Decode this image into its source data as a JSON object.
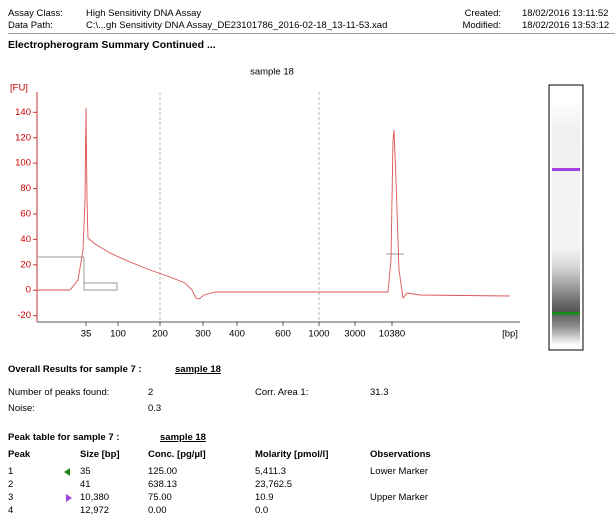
{
  "header": {
    "assay_class_label": "Assay Class:",
    "assay_class": "High Sensitivity DNA Assay",
    "data_path_label": "Data Path:",
    "data_path": "C:\\...gh Sensitivity DNA Assay_DE23101786_2016-02-18_13-11-53.xad",
    "created_label": "Created:",
    "created": "18/02/2016 13:11:52",
    "modified_label": "Modified:",
    "modified": "18/02/2016 13:53:12",
    "section_title": "Electropherogram Summary Continued ..."
  },
  "electropherogram": {
    "title": "sample 18",
    "y_label": "[FU]",
    "x_unit": "[bp]",
    "ylim": [
      -25,
      156
    ],
    "yticks": [
      -20,
      0,
      20,
      40,
      60,
      80,
      100,
      120,
      140
    ],
    "xtick_labels": [
      "35",
      "100",
      "200",
      "300",
      "400",
      "600",
      "1000",
      "3000",
      "10380"
    ]
  },
  "overall": {
    "title": "Overall Results for sample 7 :",
    "sample": "sample 18",
    "peaks_label": "Number of peaks found:",
    "peaks": "2",
    "corr_label": "Corr. Area 1:",
    "corr": "31.3",
    "noise_label": "Noise:",
    "noise": "0.3"
  },
  "peak_table": {
    "title": "Peak table for sample 7 :",
    "sample": "sample 18",
    "columns": [
      "Peak",
      "Size [bp]",
      "Conc. [pg/µl]",
      "Molarity [pmol/l]",
      "Observations"
    ],
    "rows": [
      [
        "1",
        "35",
        "125.00",
        "5,411.3",
        "Lower Marker"
      ],
      [
        "2",
        "41",
        "638.13",
        "23,762.5",
        ""
      ],
      [
        "3",
        "10,380",
        "75.00",
        "10.9",
        "Upper Marker"
      ],
      [
        "4",
        "12,972",
        "0.00",
        "0.0",
        ""
      ]
    ]
  }
}
